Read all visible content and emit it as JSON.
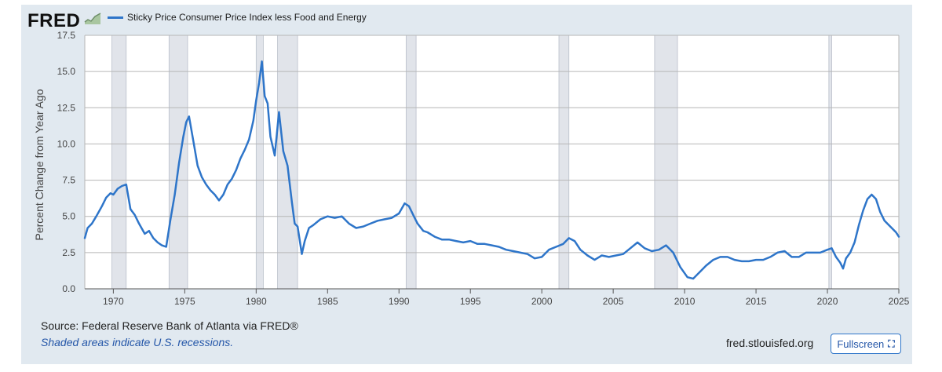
{
  "header": {
    "logo_text": "FRED",
    "legend_label": "Sticky Price Consumer Price Index less Food and Energy"
  },
  "footer": {
    "source": "Source: Federal Reserve Bank of Atlanta via FRED®",
    "note": "Shaded areas indicate U.S. recessions.",
    "site": "fred.stlouisfed.org",
    "fullscreen_label": "Fullscreen",
    "fullscreen_icon": "expand-icon"
  },
  "colors": {
    "line": "#2e75c9",
    "recession": "#e1e4ea",
    "frame": "#e1e9f0"
  },
  "chart_data": {
    "type": "line",
    "ylabel": "Percent Change from Year Ago",
    "xlim": [
      1968.0,
      2025.0
    ],
    "ylim": [
      0,
      17.5
    ],
    "yticks": [
      "0.0",
      "2.5",
      "5.0",
      "7.5",
      "10.0",
      "12.5",
      "15.0",
      "17.5"
    ],
    "xticks": [
      "1970",
      "1975",
      "1980",
      "1985",
      "1990",
      "1995",
      "2000",
      "2005",
      "2010",
      "2015",
      "2020",
      "2025"
    ],
    "grid": true,
    "legend_position": "top-left",
    "recessions": [
      [
        1969.9,
        1970.9
      ],
      [
        1973.9,
        1975.2
      ],
      [
        1980.0,
        1980.5
      ],
      [
        1981.5,
        1982.9
      ],
      [
        1990.5,
        1991.2
      ],
      [
        2001.2,
        2001.9
      ],
      [
        2007.9,
        2009.5
      ],
      [
        2020.1,
        2020.3
      ]
    ],
    "series": [
      {
        "name": "Sticky Price Consumer Price Index less Food and Energy",
        "x": [
          1968.0,
          1968.2,
          1968.5,
          1968.8,
          1969.2,
          1969.5,
          1969.8,
          1970.0,
          1970.3,
          1970.6,
          1970.9,
          1971.2,
          1971.5,
          1971.8,
          1972.2,
          1972.5,
          1972.8,
          1973.1,
          1973.4,
          1973.7,
          1974.0,
          1974.3,
          1974.6,
          1974.9,
          1975.1,
          1975.3,
          1975.6,
          1975.9,
          1976.2,
          1976.5,
          1976.8,
          1977.1,
          1977.4,
          1977.7,
          1978.0,
          1978.3,
          1978.6,
          1978.9,
          1979.2,
          1979.5,
          1979.8,
          1980.0,
          1980.2,
          1980.4,
          1980.6,
          1980.8,
          1981.0,
          1981.3,
          1981.6,
          1981.9,
          1982.2,
          1982.5,
          1982.7,
          1982.9,
          1983.2,
          1983.4,
          1983.7,
          1984.0,
          1984.5,
          1985.0,
          1985.5,
          1986.0,
          1986.5,
          1987.0,
          1987.5,
          1988.0,
          1988.5,
          1989.0,
          1989.5,
          1990.0,
          1990.4,
          1990.7,
          1991.0,
          1991.3,
          1991.7,
          1992.0,
          1992.5,
          1993.0,
          1993.5,
          1994.0,
          1994.5,
          1995.0,
          1995.5,
          1996.0,
          1996.5,
          1997.0,
          1997.5,
          1998.0,
          1998.5,
          1999.0,
          1999.5,
          2000.0,
          2000.5,
          2001.0,
          2001.5,
          2001.9,
          2002.3,
          2002.7,
          2003.2,
          2003.7,
          2004.2,
          2004.7,
          2005.2,
          2005.7,
          2006.2,
          2006.7,
          2007.2,
          2007.7,
          2008.2,
          2008.7,
          2009.2,
          2009.7,
          2010.2,
          2010.6,
          2011.0,
          2011.5,
          2012.0,
          2012.5,
          2013.0,
          2013.5,
          2014.0,
          2014.5,
          2015.0,
          2015.5,
          2016.0,
          2016.5,
          2017.0,
          2017.5,
          2018.0,
          2018.5,
          2019.0,
          2019.5,
          2020.0,
          2020.3,
          2020.6,
          2020.9,
          2021.1,
          2021.3,
          2021.6,
          2021.9,
          2022.2,
          2022.5,
          2022.8,
          2023.1,
          2023.4,
          2023.7,
          2024.0,
          2024.4,
          2024.8,
          2025.0
        ],
        "values": [
          3.5,
          4.2,
          4.5,
          5.0,
          5.7,
          6.3,
          6.6,
          6.5,
          6.9,
          7.1,
          7.2,
          5.5,
          5.1,
          4.5,
          3.8,
          4.0,
          3.5,
          3.2,
          3.0,
          2.9,
          4.8,
          6.5,
          8.7,
          10.5,
          11.5,
          11.9,
          10.2,
          8.5,
          7.7,
          7.2,
          6.8,
          6.5,
          6.1,
          6.5,
          7.2,
          7.6,
          8.2,
          9.0,
          9.6,
          10.3,
          11.6,
          13.0,
          14.2,
          15.7,
          13.3,
          12.8,
          10.5,
          9.2,
          12.2,
          9.5,
          8.5,
          6.0,
          4.5,
          4.3,
          2.4,
          3.3,
          4.2,
          4.4,
          4.8,
          5.0,
          4.9,
          5.0,
          4.5,
          4.2,
          4.3,
          4.5,
          4.7,
          4.8,
          4.9,
          5.2,
          5.9,
          5.7,
          5.1,
          4.5,
          4.0,
          3.9,
          3.6,
          3.4,
          3.4,
          3.3,
          3.2,
          3.3,
          3.1,
          3.1,
          3.0,
          2.9,
          2.7,
          2.6,
          2.5,
          2.4,
          2.1,
          2.2,
          2.7,
          2.9,
          3.1,
          3.5,
          3.3,
          2.7,
          2.3,
          2.0,
          2.3,
          2.2,
          2.3,
          2.4,
          2.8,
          3.2,
          2.8,
          2.6,
          2.7,
          3.0,
          2.5,
          1.5,
          0.8,
          0.7,
          1.1,
          1.6,
          2.0,
          2.2,
          2.2,
          2.0,
          1.9,
          1.9,
          2.0,
          2.0,
          2.2,
          2.5,
          2.6,
          2.2,
          2.2,
          2.5,
          2.5,
          2.5,
          2.7,
          2.8,
          2.2,
          1.8,
          1.4,
          2.1,
          2.5,
          3.2,
          4.4,
          5.4,
          6.2,
          6.5,
          6.2,
          5.3,
          4.7,
          4.3,
          3.9,
          3.6
        ]
      }
    ]
  }
}
